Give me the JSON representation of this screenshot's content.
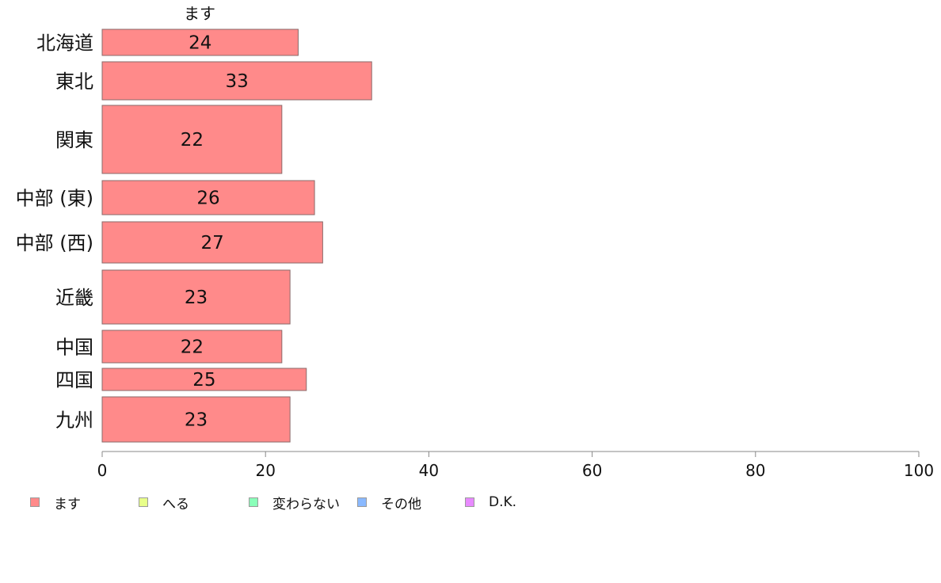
{
  "chart_data": {
    "type": "bar",
    "orientation": "horizontal",
    "stacked": true,
    "top_label": "ます",
    "categories": [
      "北海道",
      "東北",
      "関東",
      "中部 (東)",
      "中部 (西)",
      "近畿",
      "中国",
      "四国",
      "九州"
    ],
    "series": [
      {
        "name": "ます",
        "color": "#ff8a8a",
        "values": [
          24,
          33,
          22,
          26,
          27,
          23,
          22,
          25,
          23
        ]
      },
      {
        "name": "へる",
        "color": "#e8ff8a",
        "values": [
          0,
          0,
          0,
          0,
          0,
          0,
          0,
          0,
          0
        ]
      },
      {
        "name": "変わらない",
        "color": "#8affb9",
        "values": [
          0,
          0,
          0,
          0,
          0,
          0,
          0,
          0,
          0
        ]
      },
      {
        "name": "その他",
        "color": "#8ab9ff",
        "values": [
          0,
          0,
          0,
          0,
          0,
          0,
          0,
          0,
          0
        ]
      },
      {
        "name": "D.K.",
        "color": "#e88aff",
        "values": [
          0,
          0,
          0,
          0,
          0,
          0,
          0,
          0,
          0
        ]
      }
    ],
    "data_labels": [
      "24",
      "33",
      "22",
      "26",
      "27",
      "23",
      "22",
      "25",
      "23"
    ],
    "xlim": [
      0,
      100
    ],
    "xticks": [
      "0",
      "20",
      "40",
      "60",
      "80",
      "100"
    ],
    "legend_position": "bottom",
    "grid": false
  }
}
